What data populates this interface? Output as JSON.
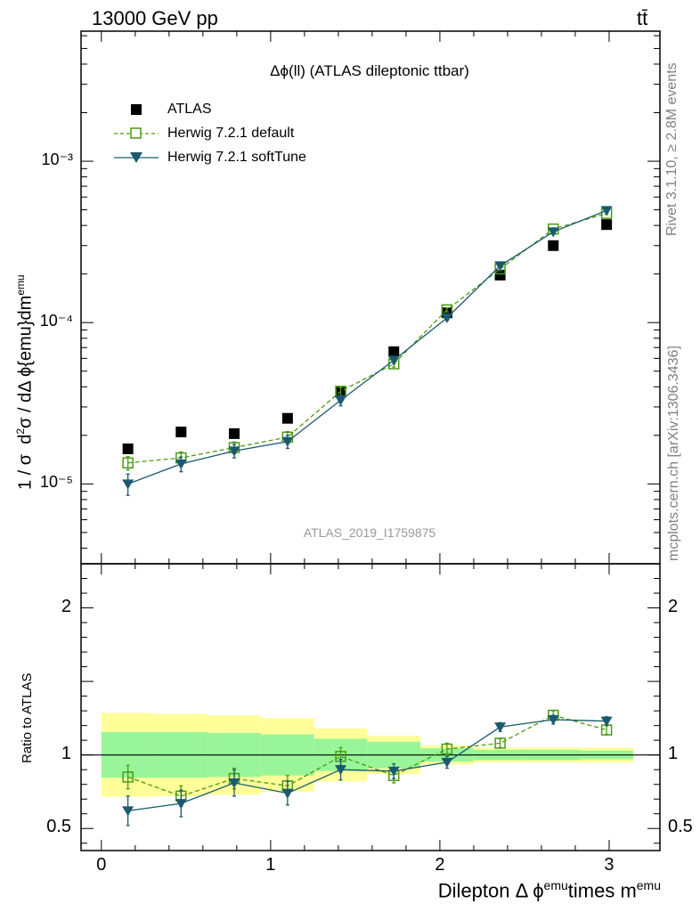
{
  "header": {
    "energy_label": "13000 GeV pp",
    "process_label": "tt̄"
  },
  "side_labels": {
    "rivet": "Rivet 3.1.10, ≥ 2.8M events",
    "mcplots": "mcplots.cern.ch [arXiv:1306.3436]"
  },
  "chart_data": [
    {
      "type": "scatter",
      "panel": "main",
      "title": "Δϕ(ll) (ATLAS dileptonic ttbar)",
      "watermark": "ATLAS_2019_I1759875",
      "ylabel": "1 / σ  d²σ / dΔ ϕ{emu}dm^emu",
      "xlim": [
        -0.12,
        3.3
      ],
      "ylim": [
        3.2e-06,
        0.0064
      ],
      "yscale": "log",
      "ytick_labels": [
        "10⁻⁵",
        "10⁻⁴",
        "10⁻³"
      ],
      "ytick_values": [
        1e-05,
        0.0001,
        0.001
      ],
      "legend_position": "top-left",
      "x": [
        0.157,
        0.471,
        0.785,
        1.1,
        1.414,
        1.728,
        2.042,
        2.356,
        2.67,
        2.985
      ],
      "series": [
        {
          "name": "ATLAS",
          "color": "#000000",
          "marker": "square-filled",
          "values": [
            1.65e-05,
            2.1e-05,
            2.05e-05,
            2.55e-05,
            3.7e-05,
            6.6e-05,
            0.000115,
            0.000197,
            0.0003,
            0.000405
          ],
          "errors": [
            6e-07,
            7e-07,
            7e-07,
            8e-07,
            1e-06,
            1.5e-06,
            2e-06,
            3e-06,
            4e-06,
            5e-06
          ]
        },
        {
          "name": "Herwig 7.2.1 default",
          "color": "#4a9a13",
          "marker": "square-open",
          "line": "dashed",
          "values": [
            1.35e-05,
            1.45e-05,
            1.68e-05,
            1.95e-05,
            3.75e-05,
            5.55e-05,
            0.00012,
            0.000215,
            0.00038,
            0.000475
          ],
          "errors": [
            1.3e-06,
            1.3e-06,
            1.4e-06,
            1.6e-06,
            2e-06,
            2.5e-06,
            3.5e-06,
            5e-06,
            6e-06,
            7e-06
          ]
        },
        {
          "name": "Herwig 7.2.1 softTune",
          "color": "#1b5a6e",
          "marker": "triangle-down",
          "line": "solid",
          "values": [
            1e-05,
            1.33e-05,
            1.6e-05,
            1.83e-05,
            3.3e-05,
            5.85e-05,
            0.000107,
            0.000225,
            0.000365,
            0.000495
          ],
          "errors": [
            1.5e-06,
            1.4e-06,
            1.5e-06,
            1.7e-06,
            2.5e-06,
            3e-06,
            4e-06,
            6e-06,
            7e-06,
            9e-06
          ]
        }
      ]
    },
    {
      "type": "scatter",
      "panel": "ratio",
      "ylabel": "Ratio to ATLAS",
      "xlabel": "Dilepton Δ ϕ^emu times m^emu",
      "xlim": [
        -0.12,
        3.3
      ],
      "ylim": [
        0.35,
        2.3
      ],
      "xtick_labels": [
        "0",
        "1",
        "2",
        "3"
      ],
      "xtick_values": [
        0,
        1,
        2,
        3
      ],
      "ytick_labels": [
        "0.5",
        "1",
        "2"
      ],
      "ytick_values": [
        0.5,
        1,
        2
      ],
      "reference_line": 1.0,
      "bin_edges": [
        0.0,
        0.314,
        0.628,
        0.942,
        1.257,
        1.571,
        1.885,
        2.199,
        2.513,
        2.827,
        3.142
      ],
      "band_inner": [
        0.155,
        0.155,
        0.15,
        0.14,
        0.11,
        0.09,
        0.045,
        0.035,
        0.035,
        0.03
      ],
      "band_outer": [
        0.285,
        0.28,
        0.27,
        0.25,
        0.18,
        0.13,
        0.065,
        0.05,
        0.05,
        0.05
      ],
      "band_colors": {
        "inner": "#99f599",
        "outer": "#ffff99"
      },
      "x": [
        0.157,
        0.471,
        0.785,
        1.1,
        1.414,
        1.728,
        2.042,
        2.356,
        2.67,
        2.985
      ],
      "series": [
        {
          "name": "Herwig 7.2.1 default",
          "color": "#4a9a13",
          "marker": "square-open",
          "line": "dashed",
          "values": [
            0.85,
            0.72,
            0.84,
            0.79,
            0.99,
            0.86,
            1.04,
            1.08,
            1.27,
            1.17
          ],
          "errors": [
            0.08,
            0.07,
            0.07,
            0.07,
            0.06,
            0.05,
            0.04,
            0.03,
            0.03,
            0.03
          ]
        },
        {
          "name": "Herwig 7.2.1 softTune",
          "color": "#1b5a6e",
          "marker": "triangle-down",
          "line": "solid",
          "values": [
            0.62,
            0.67,
            0.81,
            0.74,
            0.9,
            0.89,
            0.95,
            1.19,
            1.24,
            1.23
          ],
          "errors": [
            0.1,
            0.09,
            0.09,
            0.08,
            0.07,
            0.05,
            0.04,
            0.03,
            0.03,
            0.03
          ]
        }
      ]
    }
  ]
}
